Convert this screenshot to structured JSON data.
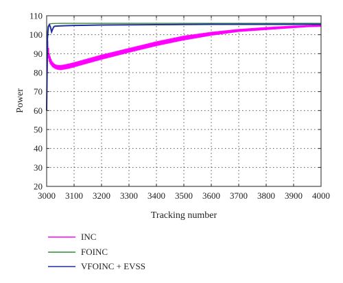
{
  "chart_data": {
    "type": "line",
    "title": "",
    "xlabel": "Tracking number",
    "ylabel": "Power",
    "xlim": [
      3000,
      4000
    ],
    "ylim": [
      20,
      110
    ],
    "xticks": [
      3000,
      3100,
      3200,
      3300,
      3400,
      3500,
      3600,
      3700,
      3800,
      3900,
      4000
    ],
    "yticks": [
      20,
      30,
      40,
      50,
      60,
      70,
      80,
      90,
      100,
      110
    ],
    "grid": true,
    "legend_position": "below",
    "series": [
      {
        "name": "INC",
        "color": "#ff00ff",
        "style": "oscillating-band",
        "x": [
          3000,
          3005,
          3010,
          3020,
          3030,
          3040,
          3050,
          3060,
          3080,
          3100,
          3150,
          3200,
          3300,
          3400,
          3500,
          3600,
          3700,
          3800,
          3900,
          3950,
          4000
        ],
        "upper": [
          102,
          96,
          90,
          86,
          84.5,
          84,
          84,
          84.2,
          84.8,
          85.5,
          87.5,
          89.5,
          93,
          96.5,
          99.5,
          101.5,
          103,
          104,
          104.8,
          105,
          105.2
        ],
        "lower": [
          70,
          88,
          85,
          83,
          82,
          81.5,
          81.3,
          81.5,
          82,
          82.8,
          84.8,
          86.8,
          90.5,
          94,
          97,
          99.5,
          101.5,
          102.5,
          103.5,
          104,
          104.2
        ]
      },
      {
        "name": "FOINC",
        "color": "#2e8b2e",
        "style": "line",
        "x": [
          3000,
          3002,
          3005,
          3010,
          3015,
          3020,
          3050,
          3100,
          3200,
          3400,
          3600,
          3800,
          4000
        ],
        "y": [
          60,
          100,
          104.5,
          105.5,
          105.8,
          105.9,
          106,
          106,
          106,
          106,
          106,
          106,
          106
        ]
      },
      {
        "name": "VFOINC + EVSS",
        "color": "#1f2fa3",
        "style": "line",
        "x": [
          3000,
          3003,
          3006,
          3010,
          3014,
          3018,
          3022,
          3026,
          3030,
          3040,
          3060,
          3100,
          3200,
          3300,
          3400,
          3500,
          3600,
          3700,
          3800,
          3900,
          4000
        ],
        "y": [
          60,
          98,
          104,
          105.3,
          104,
          101.5,
          103,
          104.2,
          104.5,
          104.6,
          104.7,
          104.9,
          105.1,
          105.2,
          105.3,
          105.4,
          105.5,
          105.5,
          105.5,
          105.5,
          105.5
        ]
      }
    ]
  }
}
